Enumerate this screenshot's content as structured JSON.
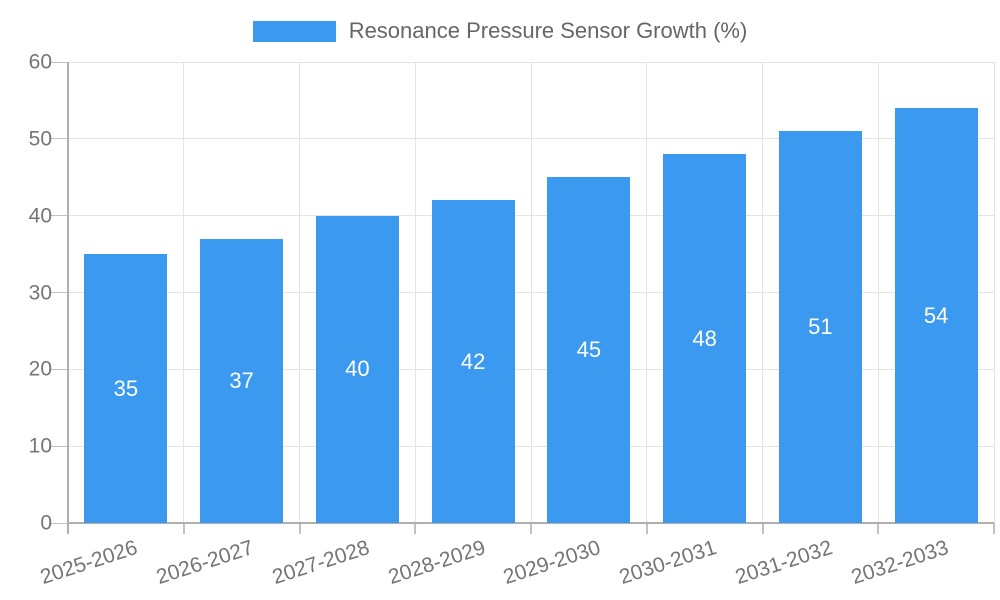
{
  "chart_data": {
    "type": "bar",
    "title": "Resonance Pressure Sensor Growth (%)",
    "categories": [
      "2025-2026",
      "2026-2027",
      "2027-2028",
      "2028-2029",
      "2029-2030",
      "2030-2031",
      "2031-2032",
      "2032-2033"
    ],
    "values": [
      35,
      37,
      40,
      42,
      45,
      48,
      51,
      54
    ],
    "yticks": [
      0,
      10,
      20,
      30,
      40,
      50,
      60
    ],
    "ylim": [
      0,
      60
    ],
    "xlabel": "",
    "ylabel": "",
    "legend_position": "top",
    "grid": true,
    "value_label_position": "inside-center",
    "x_tick_rotation_deg": -18,
    "colors": {
      "bar": "#3B99EF",
      "value_text": "#FFFFFF",
      "axis_line": "#AFAFAF",
      "tick_line": "#C2C2C2",
      "gridline": "#E3E3E3",
      "tick_text": "#757575",
      "legend_text": "#666666",
      "background": "#FFFFFF"
    }
  }
}
